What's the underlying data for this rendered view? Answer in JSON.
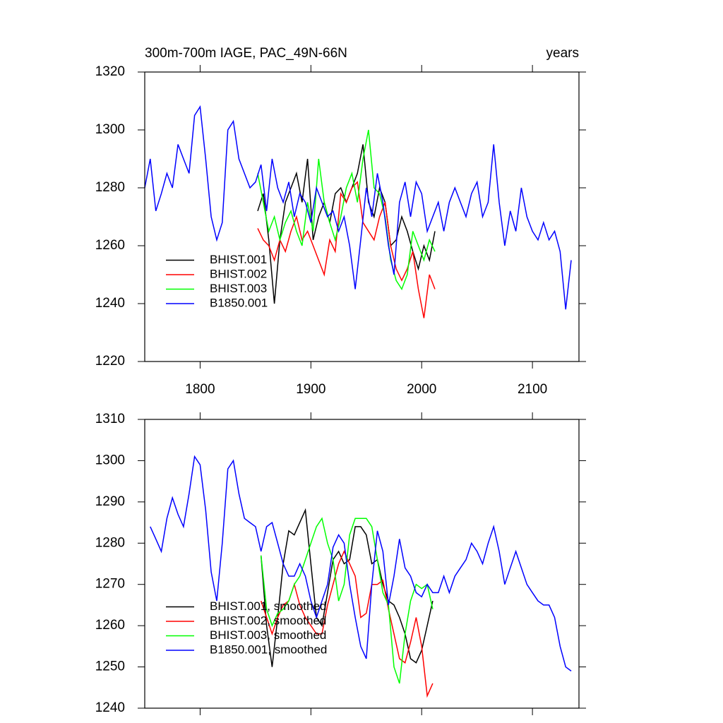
{
  "chart_data": [
    {
      "type": "line",
      "title": "300m-700m IAGE, PAC_49N-66N",
      "right_title": "years",
      "xlim": [
        1750,
        2142
      ],
      "xticks": [
        1800,
        1900,
        2000,
        2100
      ],
      "xtick_labels": true,
      "ylim": [
        1220,
        1320
      ],
      "yticks": [
        1220,
        1240,
        1260,
        1280,
        1300,
        1320
      ],
      "legend": "lower left",
      "series": [
        {
          "name": "BHIST.001",
          "color": "#000000",
          "x": [
            1852,
            1857,
            1862,
            1867,
            1872,
            1877,
            1882,
            1887,
            1892,
            1897,
            1902,
            1907,
            1912,
            1917,
            1922,
            1927,
            1932,
            1937,
            1942,
            1947,
            1952,
            1957,
            1962,
            1967,
            1972,
            1977,
            1982,
            1987,
            1992,
            1997,
            2002,
            2007,
            2012
          ],
          "values": [
            1272,
            1278,
            1262,
            1240,
            1262,
            1275,
            1280,
            1285,
            1275,
            1290,
            1262,
            1270,
            1275,
            1268,
            1278,
            1280,
            1275,
            1280,
            1285,
            1295,
            1275,
            1270,
            1280,
            1275,
            1260,
            1262,
            1270,
            1265,
            1258,
            1252,
            1260,
            1255,
            1265
          ]
        },
        {
          "name": "BHIST.002",
          "color": "#ff0000",
          "x": [
            1852,
            1857,
            1862,
            1867,
            1872,
            1877,
            1882,
            1887,
            1892,
            1897,
            1902,
            1907,
            1912,
            1917,
            1922,
            1927,
            1932,
            1937,
            1942,
            1947,
            1952,
            1957,
            1962,
            1967,
            1972,
            1977,
            1982,
            1987,
            1992,
            1997,
            2002,
            2007,
            2012
          ],
          "values": [
            1266,
            1262,
            1260,
            1255,
            1262,
            1258,
            1265,
            1270,
            1262,
            1265,
            1260,
            1255,
            1250,
            1262,
            1258,
            1278,
            1275,
            1280,
            1282,
            1268,
            1265,
            1262,
            1270,
            1275,
            1260,
            1252,
            1248,
            1252,
            1258,
            1245,
            1235,
            1250,
            1245
          ]
        },
        {
          "name": "BHIST.003",
          "color": "#00ff00",
          "x": [
            1852,
            1857,
            1862,
            1867,
            1872,
            1877,
            1882,
            1887,
            1892,
            1897,
            1902,
            1907,
            1912,
            1917,
            1922,
            1927,
            1932,
            1937,
            1942,
            1947,
            1952,
            1957,
            1962,
            1967,
            1972,
            1977,
            1982,
            1987,
            1992,
            1997,
            2002,
            2007,
            2012
          ],
          "values": [
            1285,
            1275,
            1265,
            1270,
            1262,
            1268,
            1272,
            1265,
            1260,
            1275,
            1265,
            1290,
            1275,
            1268,
            1262,
            1270,
            1280,
            1285,
            1275,
            1290,
            1300,
            1280,
            1278,
            1270,
            1255,
            1248,
            1245,
            1250,
            1265,
            1260,
            1255,
            1262,
            1258
          ]
        },
        {
          "name": "B1850.001",
          "color": "#0000ff",
          "x": [
            1750,
            1755,
            1760,
            1765,
            1770,
            1775,
            1780,
            1785,
            1790,
            1795,
            1800,
            1805,
            1810,
            1815,
            1820,
            1825,
            1830,
            1835,
            1840,
            1845,
            1850,
            1855,
            1860,
            1865,
            1870,
            1875,
            1880,
            1885,
            1890,
            1895,
            1900,
            1905,
            1910,
            1915,
            1920,
            1925,
            1930,
            1935,
            1940,
            1945,
            1950,
            1955,
            1960,
            1965,
            1970,
            1975,
            1980,
            1985,
            1990,
            1995,
            2000,
            2005,
            2010,
            2015,
            2020,
            2025,
            2030,
            2035,
            2040,
            2045,
            2050,
            2055,
            2060,
            2065,
            2070,
            2075,
            2080,
            2085,
            2090,
            2095,
            2100,
            2105,
            2110,
            2115,
            2120,
            2125,
            2130,
            2135
          ],
          "values": [
            1280,
            1290,
            1272,
            1278,
            1285,
            1280,
            1295,
            1290,
            1285,
            1305,
            1308,
            1290,
            1270,
            1262,
            1268,
            1300,
            1303,
            1290,
            1285,
            1280,
            1282,
            1288,
            1272,
            1290,
            1280,
            1275,
            1282,
            1270,
            1278,
            1275,
            1268,
            1280,
            1275,
            1270,
            1272,
            1265,
            1270,
            1260,
            1245,
            1262,
            1280,
            1270,
            1285,
            1275,
            1260,
            1250,
            1275,
            1282,
            1270,
            1282,
            1278,
            1265,
            1270,
            1275,
            1265,
            1275,
            1280,
            1275,
            1270,
            1278,
            1282,
            1270,
            1275,
            1295,
            1275,
            1260,
            1272,
            1265,
            1280,
            1270,
            1265,
            1262,
            1268,
            1262,
            1265,
            1258,
            1238,
            1255
          ]
        }
      ]
    },
    {
      "type": "line",
      "xlim": [
        1750,
        2142
      ],
      "xticks": [
        1800,
        1900,
        2000,
        2100
      ],
      "xtick_labels": false,
      "ylim": [
        1240,
        1310
      ],
      "yticks": [
        1240,
        1250,
        1260,
        1270,
        1280,
        1290,
        1300,
        1310
      ],
      "legend": "lower left",
      "series": [
        {
          "name": "BHIST.001, smoothed",
          "color": "#000000",
          "x": [
            1855,
            1860,
            1865,
            1870,
            1875,
            1880,
            1885,
            1890,
            1895,
            1900,
            1905,
            1910,
            1915,
            1920,
            1925,
            1930,
            1935,
            1940,
            1945,
            1950,
            1955,
            1960,
            1965,
            1970,
            1975,
            1980,
            1985,
            1990,
            1995,
            2000,
            2005,
            2010
          ],
          "values": [
            1277,
            1260,
            1250,
            1262,
            1275,
            1283,
            1282,
            1285,
            1288,
            1275,
            1262,
            1260,
            1268,
            1276,
            1278,
            1275,
            1276,
            1284,
            1284,
            1282,
            1275,
            1276,
            1270,
            1266,
            1265,
            1262,
            1258,
            1252,
            1251,
            1254,
            1260,
            1266
          ]
        },
        {
          "name": "BHIST.002, smoothed",
          "color": "#ff0000",
          "x": [
            1855,
            1860,
            1865,
            1870,
            1875,
            1880,
            1885,
            1890,
            1895,
            1900,
            1905,
            1910,
            1915,
            1920,
            1925,
            1930,
            1935,
            1940,
            1945,
            1950,
            1955,
            1960,
            1965,
            1970,
            1975,
            1980,
            1985,
            1990,
            1995,
            2000,
            2005,
            2010
          ],
          "values": [
            1266,
            1262,
            1258,
            1262,
            1265,
            1266,
            1270,
            1265,
            1262,
            1260,
            1258,
            1258,
            1265,
            1270,
            1275,
            1278,
            1275,
            1272,
            1262,
            1263,
            1270,
            1270,
            1271,
            1264,
            1258,
            1252,
            1251,
            1256,
            1262,
            1255,
            1243,
            1246
          ]
        },
        {
          "name": "BHIST.003, smoothed",
          "color": "#00ff00",
          "x": [
            1855,
            1860,
            1865,
            1870,
            1875,
            1880,
            1885,
            1890,
            1895,
            1900,
            1905,
            1910,
            1915,
            1920,
            1925,
            1930,
            1935,
            1940,
            1945,
            1950,
            1955,
            1960,
            1965,
            1970,
            1975,
            1980,
            1985,
            1990,
            1995,
            2000,
            2005,
            2010
          ],
          "values": [
            1277,
            1264,
            1260,
            1263,
            1264,
            1266,
            1270,
            1272,
            1276,
            1280,
            1284,
            1286,
            1280,
            1276,
            1266,
            1270,
            1282,
            1286,
            1286,
            1286,
            1284,
            1276,
            1268,
            1265,
            1250,
            1246,
            1258,
            1266,
            1270,
            1269,
            1270,
            1264
          ]
        },
        {
          "name": "B1850.001, smoothed",
          "color": "#0000ff",
          "x": [
            1755,
            1760,
            1765,
            1770,
            1775,
            1780,
            1785,
            1790,
            1795,
            1800,
            1805,
            1810,
            1815,
            1820,
            1825,
            1830,
            1835,
            1840,
            1845,
            1850,
            1855,
            1860,
            1865,
            1870,
            1875,
            1880,
            1885,
            1890,
            1895,
            1900,
            1905,
            1910,
            1915,
            1920,
            1925,
            1930,
            1935,
            1940,
            1945,
            1950,
            1955,
            1960,
            1965,
            1970,
            1975,
            1980,
            1985,
            1990,
            1995,
            2000,
            2005,
            2010,
            2015,
            2020,
            2025,
            2030,
            2035,
            2040,
            2045,
            2050,
            2055,
            2060,
            2065,
            2070,
            2075,
            2080,
            2085,
            2090,
            2095,
            2100,
            2105,
            2110,
            2115,
            2120,
            2125,
            2130,
            2135
          ],
          "values": [
            1284,
            1281,
            1278,
            1286,
            1291,
            1287,
            1284,
            1292,
            1301,
            1299,
            1288,
            1273,
            1266,
            1280,
            1298,
            1300,
            1292,
            1286,
            1285,
            1284,
            1278,
            1284,
            1285,
            1280,
            1275,
            1272,
            1272,
            1275,
            1272,
            1266,
            1262,
            1266,
            1270,
            1279,
            1282,
            1280,
            1270,
            1262,
            1255,
            1252,
            1270,
            1283,
            1278,
            1265,
            1272,
            1281,
            1274,
            1272,
            1268,
            1267,
            1270,
            1268,
            1268,
            1272,
            1268,
            1272,
            1274,
            1276,
            1280,
            1278,
            1275,
            1280,
            1284,
            1278,
            1270,
            1274,
            1278,
            1274,
            1270,
            1268,
            1266,
            1265,
            1265,
            1262,
            1255,
            1250,
            1249
          ]
        }
      ]
    }
  ]
}
